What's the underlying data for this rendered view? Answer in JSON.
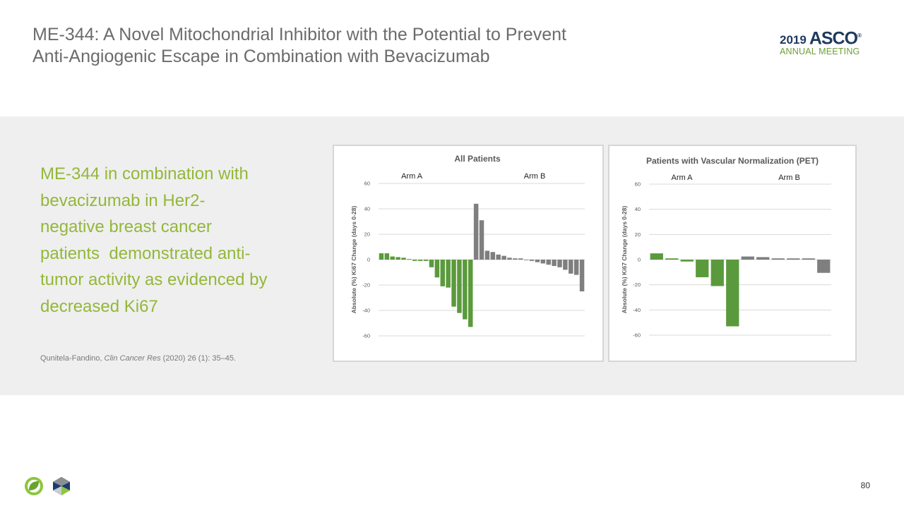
{
  "title": {
    "line1": "ME-344: A Novel Mitochondrial Inhibitor with the Potential to Prevent",
    "line2": "Anti-Angiogenic Escape in Combination with Bevacizumab"
  },
  "logo": {
    "year": "2019",
    "brand": "ASCO",
    "mark": "®",
    "subtitle": "ANNUAL MEETING"
  },
  "body_text": [
    "ME-344 in combination with",
    "bevacizumab in Her2-",
    "negative breast cancer",
    "patients  demonstrated anti-",
    "tumor activity as evidenced by",
    "decreased Ki67"
  ],
  "citation": {
    "authors": "Qunitela-Fandino, ",
    "journal": "Clin Cancer Res",
    "rest": " (2020) 26 (1): 35–45."
  },
  "page_number": "80",
  "colors": {
    "arm_a": "#5b9a3c",
    "arm_b": "#7f7f7f",
    "body_text": "#94b73a",
    "title": "#6b6b6b",
    "band": "#efefef"
  },
  "icons": [
    "leaf-logo-icon",
    "hexagon-logo-icon"
  ],
  "chart_data": [
    {
      "type": "bar",
      "title": "All Patients",
      "ylabel": "Absolute (%) Ki67 Change (days 0-28)",
      "ylim": [
        -60,
        60
      ],
      "yticks": [
        60,
        40,
        20,
        0,
        -20,
        -40,
        -60
      ],
      "grid": true,
      "series": [
        {
          "name": "Arm A",
          "values": [
            5,
            5,
            2.5,
            2,
            1.5,
            0.5,
            -1,
            -1,
            -1,
            -6,
            -14,
            -21,
            -22,
            -37,
            -42,
            -47,
            -53
          ]
        },
        {
          "name": "Arm B",
          "values": [
            44,
            31,
            7,
            6,
            4,
            3,
            1.5,
            1,
            1,
            0,
            -1,
            -2,
            -3,
            -4,
            -5,
            -6,
            -8,
            -11,
            -12,
            -25
          ]
        }
      ]
    },
    {
      "type": "bar",
      "title": "Patients with Vascular Normalization (PET)",
      "ylabel": "Absolute (%) Ki67 Change (days 0-28)",
      "ylim": [
        -60,
        60
      ],
      "yticks": [
        60,
        40,
        20,
        0,
        -20,
        -40,
        -60
      ],
      "grid": true,
      "series": [
        {
          "name": "Arm A",
          "values": [
            5,
            1,
            -1.5,
            -14,
            -21,
            -53
          ]
        },
        {
          "name": "Arm B",
          "values": [
            2.5,
            2,
            1,
            1,
            1,
            -10.5
          ]
        }
      ]
    }
  ]
}
